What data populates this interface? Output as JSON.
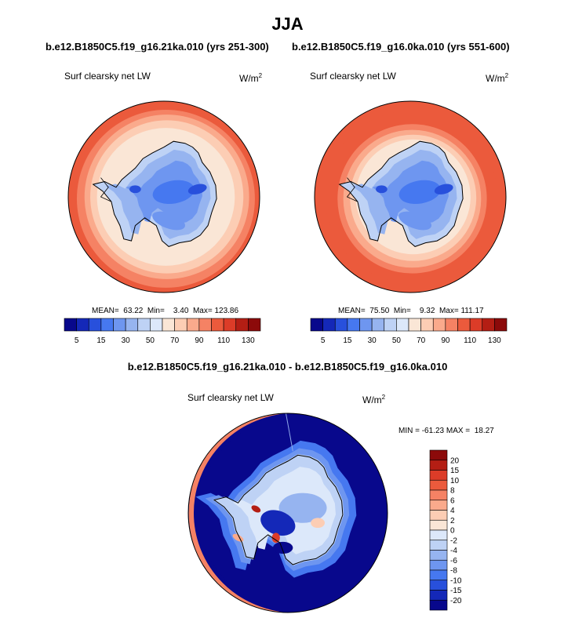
{
  "title": "JJA",
  "units_base": "W/m",
  "units_exp": "2",
  "panels": [
    {
      "case": "b.e12.B1850C5.f19_g16.21ka.010 (yrs 251-300)",
      "subtitle": "Surf clearsky net LW",
      "stats": "MEAN=  63.22  Min=    3.40  Max= 123.86"
    },
    {
      "case": "b.e12.B1850C5.f19_g16.0ka.010 (yrs 551-600)",
      "subtitle": "Surf clearsky net LW",
      "stats": "MEAN=  75.50  Min=    9.32  Max= 111.17"
    }
  ],
  "difference": {
    "title": "b.e12.B1850C5.f19_g16.21ka.010 - b.e12.B1850C5.f19_g16.0ka.010",
    "subtitle": "Surf clearsky net LW",
    "stats": "MIN = -61.23 MAX =  18.27"
  },
  "chart_data": [
    {
      "type": "heatmap",
      "name": "21ka",
      "projection": "south polar stereographic",
      "stats": {
        "mean": 63.22,
        "min": 3.4,
        "max": 123.86
      },
      "colorbar": {
        "orientation": "horizontal",
        "levels": [
          5,
          10,
          15,
          20,
          30,
          40,
          50,
          60,
          70,
          80,
          90,
          100,
          110,
          120,
          130
        ],
        "labels": [
          "5",
          "15",
          "30",
          "50",
          "70",
          "90",
          "110",
          "130"
        ],
        "colors": [
          "#08088C",
          "#1428B8",
          "#2850DC",
          "#4678F0",
          "#6E96F0",
          "#96B4F0",
          "#BED2F5",
          "#DCE8FA",
          "#FAE6D6",
          "#FCCDB4",
          "#FAAA8C",
          "#F58264",
          "#EB5A3C",
          "#DC3C28",
          "#B41E14",
          "#8C0A0A"
        ]
      }
    },
    {
      "type": "heatmap",
      "name": "0ka",
      "projection": "south polar stereographic",
      "stats": {
        "mean": 75.5,
        "min": 9.32,
        "max": 111.17
      },
      "colorbar": {
        "orientation": "horizontal",
        "levels": [
          5,
          10,
          15,
          20,
          30,
          40,
          50,
          60,
          70,
          80,
          90,
          100,
          110,
          120,
          130
        ],
        "labels": [
          "5",
          "15",
          "30",
          "50",
          "70",
          "90",
          "110",
          "130"
        ],
        "colors": [
          "#08088C",
          "#1428B8",
          "#2850DC",
          "#4678F0",
          "#6E96F0",
          "#96B4F0",
          "#BED2F5",
          "#DCE8FA",
          "#FAE6D6",
          "#FCCDB4",
          "#FAAA8C",
          "#F58264",
          "#EB5A3C",
          "#DC3C28",
          "#B41E14",
          "#8C0A0A"
        ]
      }
    },
    {
      "type": "heatmap",
      "name": "difference",
      "projection": "south polar stereographic",
      "stats": {
        "min": -61.23,
        "max": 18.27
      },
      "colorbar": {
        "orientation": "vertical",
        "labels": [
          "20",
          "15",
          "10",
          "8",
          "6",
          "4",
          "2",
          "0",
          "-2",
          "-4",
          "-6",
          "-8",
          "-10",
          "-15",
          "-20"
        ],
        "colors": [
          "#8C0A0A",
          "#B41E14",
          "#DC3C28",
          "#EB5A3C",
          "#F58264",
          "#FAAA8C",
          "#FCCDB4",
          "#FAE6D6",
          "#DCE8FA",
          "#BED2F5",
          "#96B4F0",
          "#6E96F0",
          "#4678F0",
          "#2850DC",
          "#1428B8",
          "#08088C"
        ]
      }
    }
  ]
}
